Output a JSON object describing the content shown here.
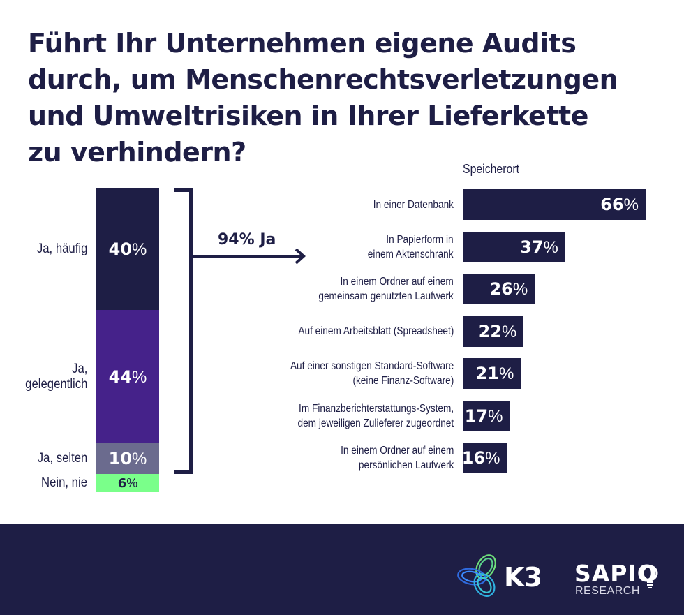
{
  "title_lines": [
    "Führt Ihr Unternehmen eigene Audits",
    "durch, um Menschenrechtsverletzungen",
    "und Umweltrisiken in Ihrer Lieferkette",
    "zu verhindern?"
  ],
  "yes_summary": "94% Ja",
  "colors": {
    "navy": "#1e1e45",
    "purple": "#45228a",
    "grey": "#6b6b8e",
    "green": "#7aff8a"
  },
  "chart_data": [
    {
      "type": "bar",
      "orientation": "stacked-vertical",
      "title": "Führt Ihr Unternehmen eigene Audits durch, um Menschenrechtsverletzungen und Umweltrisiken in Ihrer Lieferkette zu verhindern?",
      "categories": [
        "Ja, häufig",
        "Ja, gelegentlich",
        "Ja, selten",
        "Nein, nie"
      ],
      "values": [
        40,
        44,
        10,
        6
      ],
      "unit": "%",
      "colors": [
        "#1e1e45",
        "#45228a",
        "#6b6b8e",
        "#7aff8a"
      ],
      "annotation": "94% Ja",
      "value_labels": [
        "40",
        "44",
        "10",
        "6"
      ]
    },
    {
      "type": "bar",
      "orientation": "horizontal",
      "title": "Speicherort",
      "categories": [
        "In einer Datenbank",
        "In Papierform in einem Aktenschrank",
        "In einem Ordner auf einem gemeinsam genutzten Laufwerk",
        "Auf einem Arbeitsblatt (Spreadsheet)",
        "Auf einer sonstigen Standard-Software (keine Finanz-Software)",
        "Im Finanzberichterstattungs-System, dem jeweiligen Zulieferer zugeordnet",
        "In einem Ordner auf einem persönlichen Laufwerk"
      ],
      "label_lines": [
        [
          "In einer Datenbank"
        ],
        [
          "In Papierform in",
          "einem Aktenschrank"
        ],
        [
          "In einem Ordner auf einem",
          "gemeinsam genutzten Laufwerk"
        ],
        [
          "Auf einem Arbeitsblatt (Spreadsheet)"
        ],
        [
          "Auf einer sonstigen Standard-Software",
          "(keine Finanz-Software)"
        ],
        [
          "Im Finanzberichterstattungs-System,",
          "dem jeweiligen Zulieferer zugeordnet"
        ],
        [
          "In einem Ordner auf einem",
          "persönlichen Laufwerk"
        ]
      ],
      "values": [
        66,
        37,
        26,
        22,
        21,
        17,
        16
      ],
      "unit": "%",
      "color": "#1e1e45",
      "xlim": [
        0,
        66
      ]
    }
  ],
  "logos": {
    "k3": "K3",
    "sapio": "SAPIO",
    "research": "RESEARCH"
  }
}
